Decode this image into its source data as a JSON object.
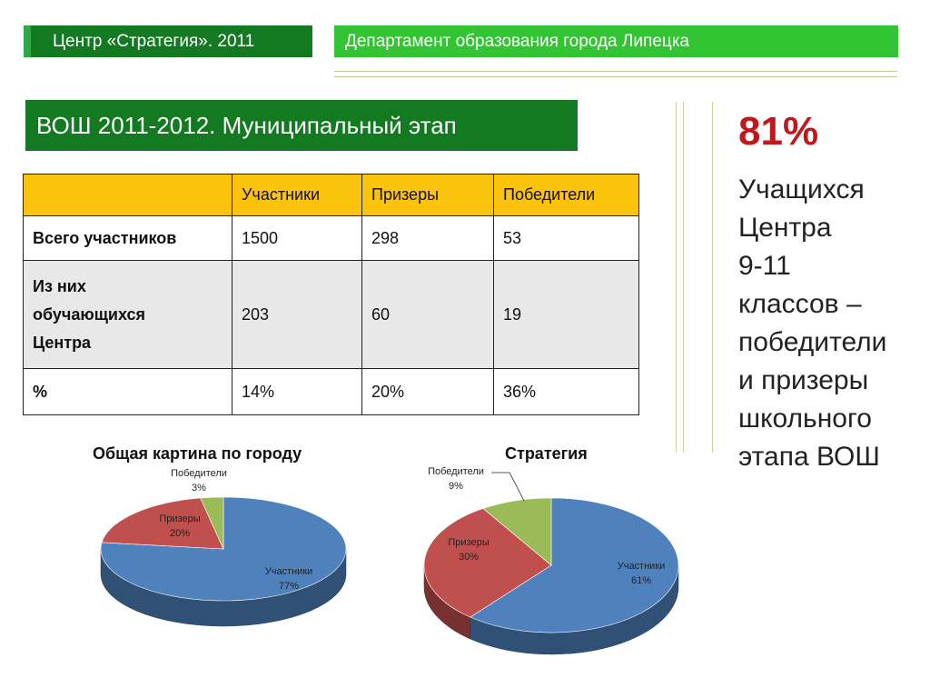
{
  "header": {
    "left_banner": "Центр «Стратегия». 2011",
    "right_banner": "Департамент образования города Липецка"
  },
  "slide_title": "ВОШ 2011-2012. Муниципальный этап",
  "table": {
    "columns": [
      "",
      "Участники",
      "Призеры",
      "Победители"
    ],
    "rows": [
      {
        "label": "Всего участников",
        "cells": [
          "1500",
          "298",
          "53"
        ]
      },
      {
        "label": "Из них обучающихся Центра",
        "label_lines": [
          "Из них",
          "обучающихся",
          "Центра"
        ],
        "cells": [
          "203",
          "60",
          "19"
        ]
      },
      {
        "label": "%",
        "cells": [
          "14%",
          "20%",
          "36%"
        ]
      }
    ]
  },
  "chart_data": [
    {
      "type": "pie",
      "title": "Общая картина по городу",
      "categories": [
        "Участники",
        "Призеры",
        "Победители"
      ],
      "values": [
        77,
        20,
        3
      ],
      "labels": [
        "77%",
        "20%",
        "3%"
      ],
      "colors": [
        "#4f81bd",
        "#c0504d",
        "#9bbb59"
      ]
    },
    {
      "type": "pie",
      "title": "Стратегия",
      "categories": [
        "Участники",
        "Призеры",
        "Победители"
      ],
      "values": [
        61,
        30,
        9
      ],
      "labels": [
        "61%",
        "30%",
        "9%"
      ],
      "colors": [
        "#4f81bd",
        "#c0504d",
        "#9bbb59"
      ]
    }
  ],
  "sidebar": {
    "big_percent": "81%",
    "lines": [
      "Учащихся",
      "Центра",
      "9-11",
      "классов –",
      "победители",
      "и призеры",
      "школьного",
      "этапа ВОШ"
    ]
  }
}
